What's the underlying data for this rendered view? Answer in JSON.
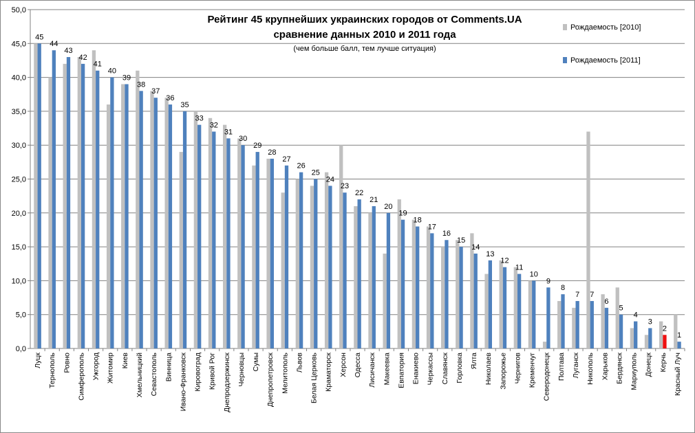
{
  "chart_data": {
    "type": "bar",
    "title": "Рейтинг 45 крупнейших украинских городов от Comments.UA",
    "subtitle": "сравнение данных 2010 и 2011 года",
    "note": "(чем больше балл, тем лучше ситуация)",
    "ylim": [
      0,
      50
    ],
    "yticks": [
      "0,0",
      "5,0",
      "10,0",
      "15,0",
      "20,0",
      "25,0",
      "30,0",
      "35,0",
      "40,0",
      "45,0",
      "50,0"
    ],
    "grid": true,
    "legend_position": "top-right",
    "categories": [
      "Луцк",
      "Тернополь",
      "Ровно",
      "Симферополь",
      "Ужгород",
      "Житомир",
      "Киев",
      "Хмельницкий",
      "Севастополь",
      "Винница",
      "Ивано-Франковск",
      "Кировоград",
      "Кривой Рог",
      "Днепродзержинск",
      "Черновцы",
      "Сумы",
      "Днепропетровск",
      "Мелитополь",
      "Львов",
      "Белая Церковь",
      "Краматорск",
      "Херсон",
      "Одесса",
      "Лисичанск",
      "Макеевка",
      "Евпатория",
      "Енакиево",
      "Черкассы",
      "Славянск",
      "Горловка",
      "Ялта",
      "Николаев",
      "Запорожье",
      "Чернигов",
      "Кременчуг",
      "Северодонецк",
      "Полтава",
      "Луганск",
      "Никополь",
      "Харьков",
      "Бердянск",
      "Мариуполь",
      "Донецк",
      "Керчь",
      "Красный Луч"
    ],
    "series": [
      {
        "name": "Рождаемость [2010]",
        "color": "#c0c0c0",
        "values": [
          45,
          40,
          42,
          43,
          44,
          36,
          39,
          41,
          38,
          37,
          29,
          35,
          34,
          33,
          31,
          27,
          28,
          23,
          25,
          24,
          26,
          30,
          21,
          20,
          14,
          22,
          19,
          18,
          15,
          16,
          17,
          11,
          13,
          12,
          10,
          1,
          7,
          6,
          32,
          8,
          9,
          3,
          2,
          4,
          5
        ]
      },
      {
        "name": "Рождаемость [2011]",
        "color": "#4f81bd",
        "values": [
          45,
          44,
          43,
          42,
          41,
          40,
          39,
          38,
          37,
          36,
          35,
          33,
          32,
          31,
          30,
          29,
          28,
          27,
          26,
          25,
          24,
          23,
          22,
          21,
          20,
          19,
          18,
          17,
          16,
          15,
          14,
          13,
          12,
          11,
          10,
          9,
          8,
          7,
          7,
          6,
          5,
          4,
          3,
          2,
          1
        ]
      }
    ],
    "data_labels": [
      "45",
      "44",
      "43",
      "42",
      "41",
      "40",
      "39",
      "38",
      "37",
      "36",
      "35",
      "33",
      "32",
      "31",
      "30",
      "29",
      "28",
      "27",
      "26",
      "25",
      "24",
      "23",
      "22",
      "21",
      "20",
      "19",
      "18",
      "17",
      "16",
      "15",
      "14",
      "13",
      "12",
      "11",
      "10",
      "9",
      "8",
      "7",
      "7",
      "6",
      "5",
      "4",
      "3",
      "2",
      "1"
    ],
    "highlight": {
      "category": "Керчь",
      "series": 1,
      "color": "#ee1111"
    }
  }
}
